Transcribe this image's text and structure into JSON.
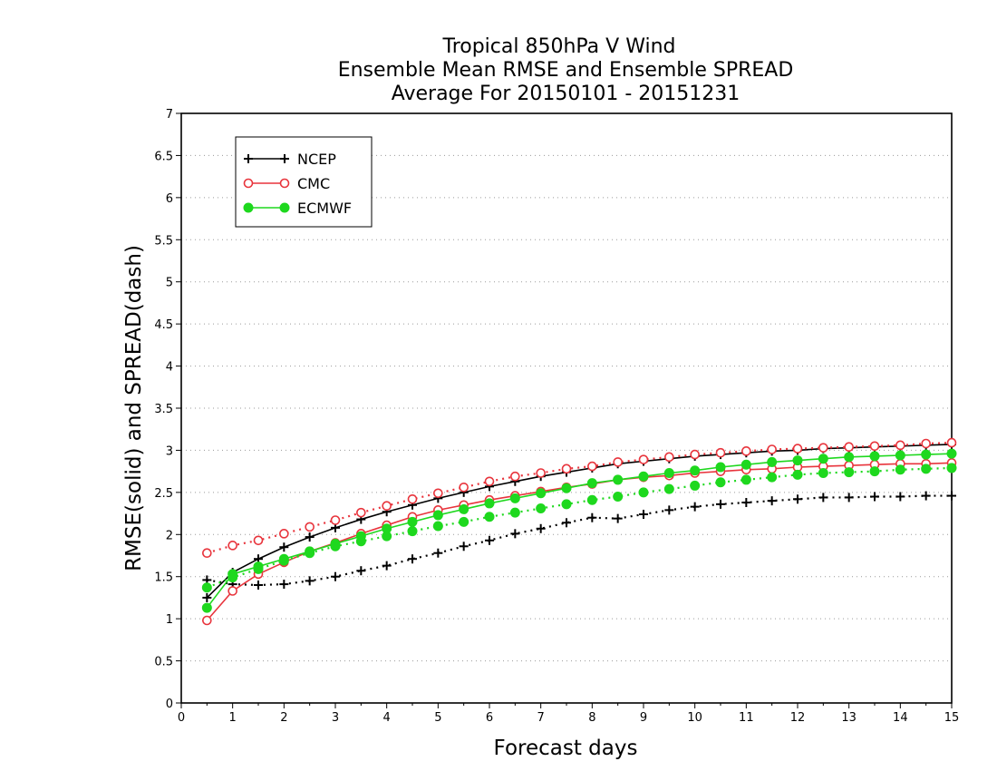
{
  "chart_data": {
    "type": "line",
    "title": [
      "Tropical 850hPa V Wind",
      "Ensemble Mean RMSE and Ensemble SPREAD",
      "Average For 20150101 - 20151231"
    ],
    "xlabel": "Forecast days",
    "ylabel": "RMSE(solid) and SPREAD(dash)",
    "xlim": [
      0,
      15
    ],
    "ylim": [
      0,
      7
    ],
    "xticks": [
      "0",
      "1",
      "2",
      "3",
      "4",
      "5",
      "6",
      "7",
      "8",
      "9",
      "10",
      "11",
      "12",
      "13",
      "14",
      "15"
    ],
    "yticks": [
      "0",
      "0.5",
      "1",
      "1.5",
      "2",
      "2.5",
      "3",
      "3.5",
      "4",
      "4.5",
      "5",
      "5.5",
      "6",
      "6.5",
      "7"
    ],
    "grid": "horizontal dotted",
    "legend_position": "top-left",
    "x": [
      0.5,
      1,
      1.5,
      2,
      2.5,
      3,
      3.5,
      4,
      4.5,
      5,
      5.5,
      6,
      6.5,
      7,
      7.5,
      8,
      8.5,
      9,
      9.5,
      10,
      10.5,
      11,
      11.5,
      12,
      12.5,
      13,
      13.5,
      14,
      14.5,
      15
    ],
    "series": [
      {
        "name": "NCEP",
        "metric": "RMSE",
        "style": "solid",
        "marker": "plus",
        "color": "#000000",
        "values": [
          1.25,
          1.55,
          1.71,
          1.85,
          1.97,
          2.08,
          2.18,
          2.27,
          2.35,
          2.43,
          2.5,
          2.57,
          2.63,
          2.69,
          2.74,
          2.79,
          2.84,
          2.87,
          2.9,
          2.93,
          2.95,
          2.97,
          2.99,
          3.0,
          3.02,
          3.03,
          3.04,
          3.05,
          3.06,
          3.07
        ]
      },
      {
        "name": "NCEP",
        "metric": "SPREAD",
        "style": "dash",
        "marker": "plus",
        "color": "#000000",
        "values": [
          1.46,
          1.41,
          1.4,
          1.41,
          1.45,
          1.5,
          1.57,
          1.63,
          1.71,
          1.78,
          1.86,
          1.93,
          2.01,
          2.07,
          2.14,
          2.2,
          2.19,
          2.24,
          2.29,
          2.33,
          2.36,
          2.38,
          2.4,
          2.42,
          2.44,
          2.44,
          2.45,
          2.45,
          2.46,
          2.46
        ]
      },
      {
        "name": "CMC",
        "metric": "RMSE",
        "style": "solid",
        "marker": "open-circle",
        "color": "#e8343c",
        "values": [
          0.98,
          1.33,
          1.53,
          1.67,
          1.8,
          1.9,
          2.01,
          2.11,
          2.21,
          2.29,
          2.35,
          2.41,
          2.46,
          2.51,
          2.56,
          2.6,
          2.65,
          2.68,
          2.7,
          2.73,
          2.75,
          2.77,
          2.78,
          2.8,
          2.81,
          2.82,
          2.83,
          2.84,
          2.84,
          2.85
        ]
      },
      {
        "name": "CMC",
        "metric": "SPREAD",
        "style": "dash",
        "marker": "open-circle",
        "color": "#e8343c",
        "values": [
          1.78,
          1.87,
          1.93,
          2.01,
          2.09,
          2.17,
          2.26,
          2.34,
          2.42,
          2.49,
          2.56,
          2.63,
          2.69,
          2.73,
          2.78,
          2.81,
          2.86,
          2.89,
          2.92,
          2.95,
          2.97,
          2.99,
          3.01,
          3.02,
          3.03,
          3.04,
          3.05,
          3.06,
          3.08,
          3.09
        ]
      },
      {
        "name": "ECMWF",
        "metric": "RMSE",
        "style": "solid",
        "marker": "filled-circle",
        "color": "#1ed81e",
        "values": [
          1.13,
          1.53,
          1.62,
          1.71,
          1.8,
          1.89,
          1.98,
          2.07,
          2.15,
          2.23,
          2.3,
          2.37,
          2.43,
          2.49,
          2.55,
          2.61,
          2.65,
          2.69,
          2.73,
          2.76,
          2.8,
          2.83,
          2.86,
          2.88,
          2.9,
          2.92,
          2.93,
          2.94,
          2.95,
          2.96
        ]
      },
      {
        "name": "ECMWF",
        "metric": "SPREAD",
        "style": "dash",
        "marker": "filled-circle",
        "color": "#1ed81e",
        "values": [
          1.37,
          1.49,
          1.59,
          1.69,
          1.78,
          1.86,
          1.92,
          1.98,
          2.04,
          2.1,
          2.15,
          2.21,
          2.26,
          2.31,
          2.36,
          2.41,
          2.45,
          2.5,
          2.54,
          2.58,
          2.62,
          2.65,
          2.68,
          2.71,
          2.73,
          2.74,
          2.75,
          2.77,
          2.78,
          2.79
        ]
      }
    ],
    "legend": [
      {
        "name": "NCEP",
        "marker": "plus",
        "color": "#000000"
      },
      {
        "name": "CMC",
        "marker": "open-circle",
        "color": "#e8343c"
      },
      {
        "name": "ECMWF",
        "marker": "filled-circle",
        "color": "#1ed81e"
      }
    ]
  }
}
